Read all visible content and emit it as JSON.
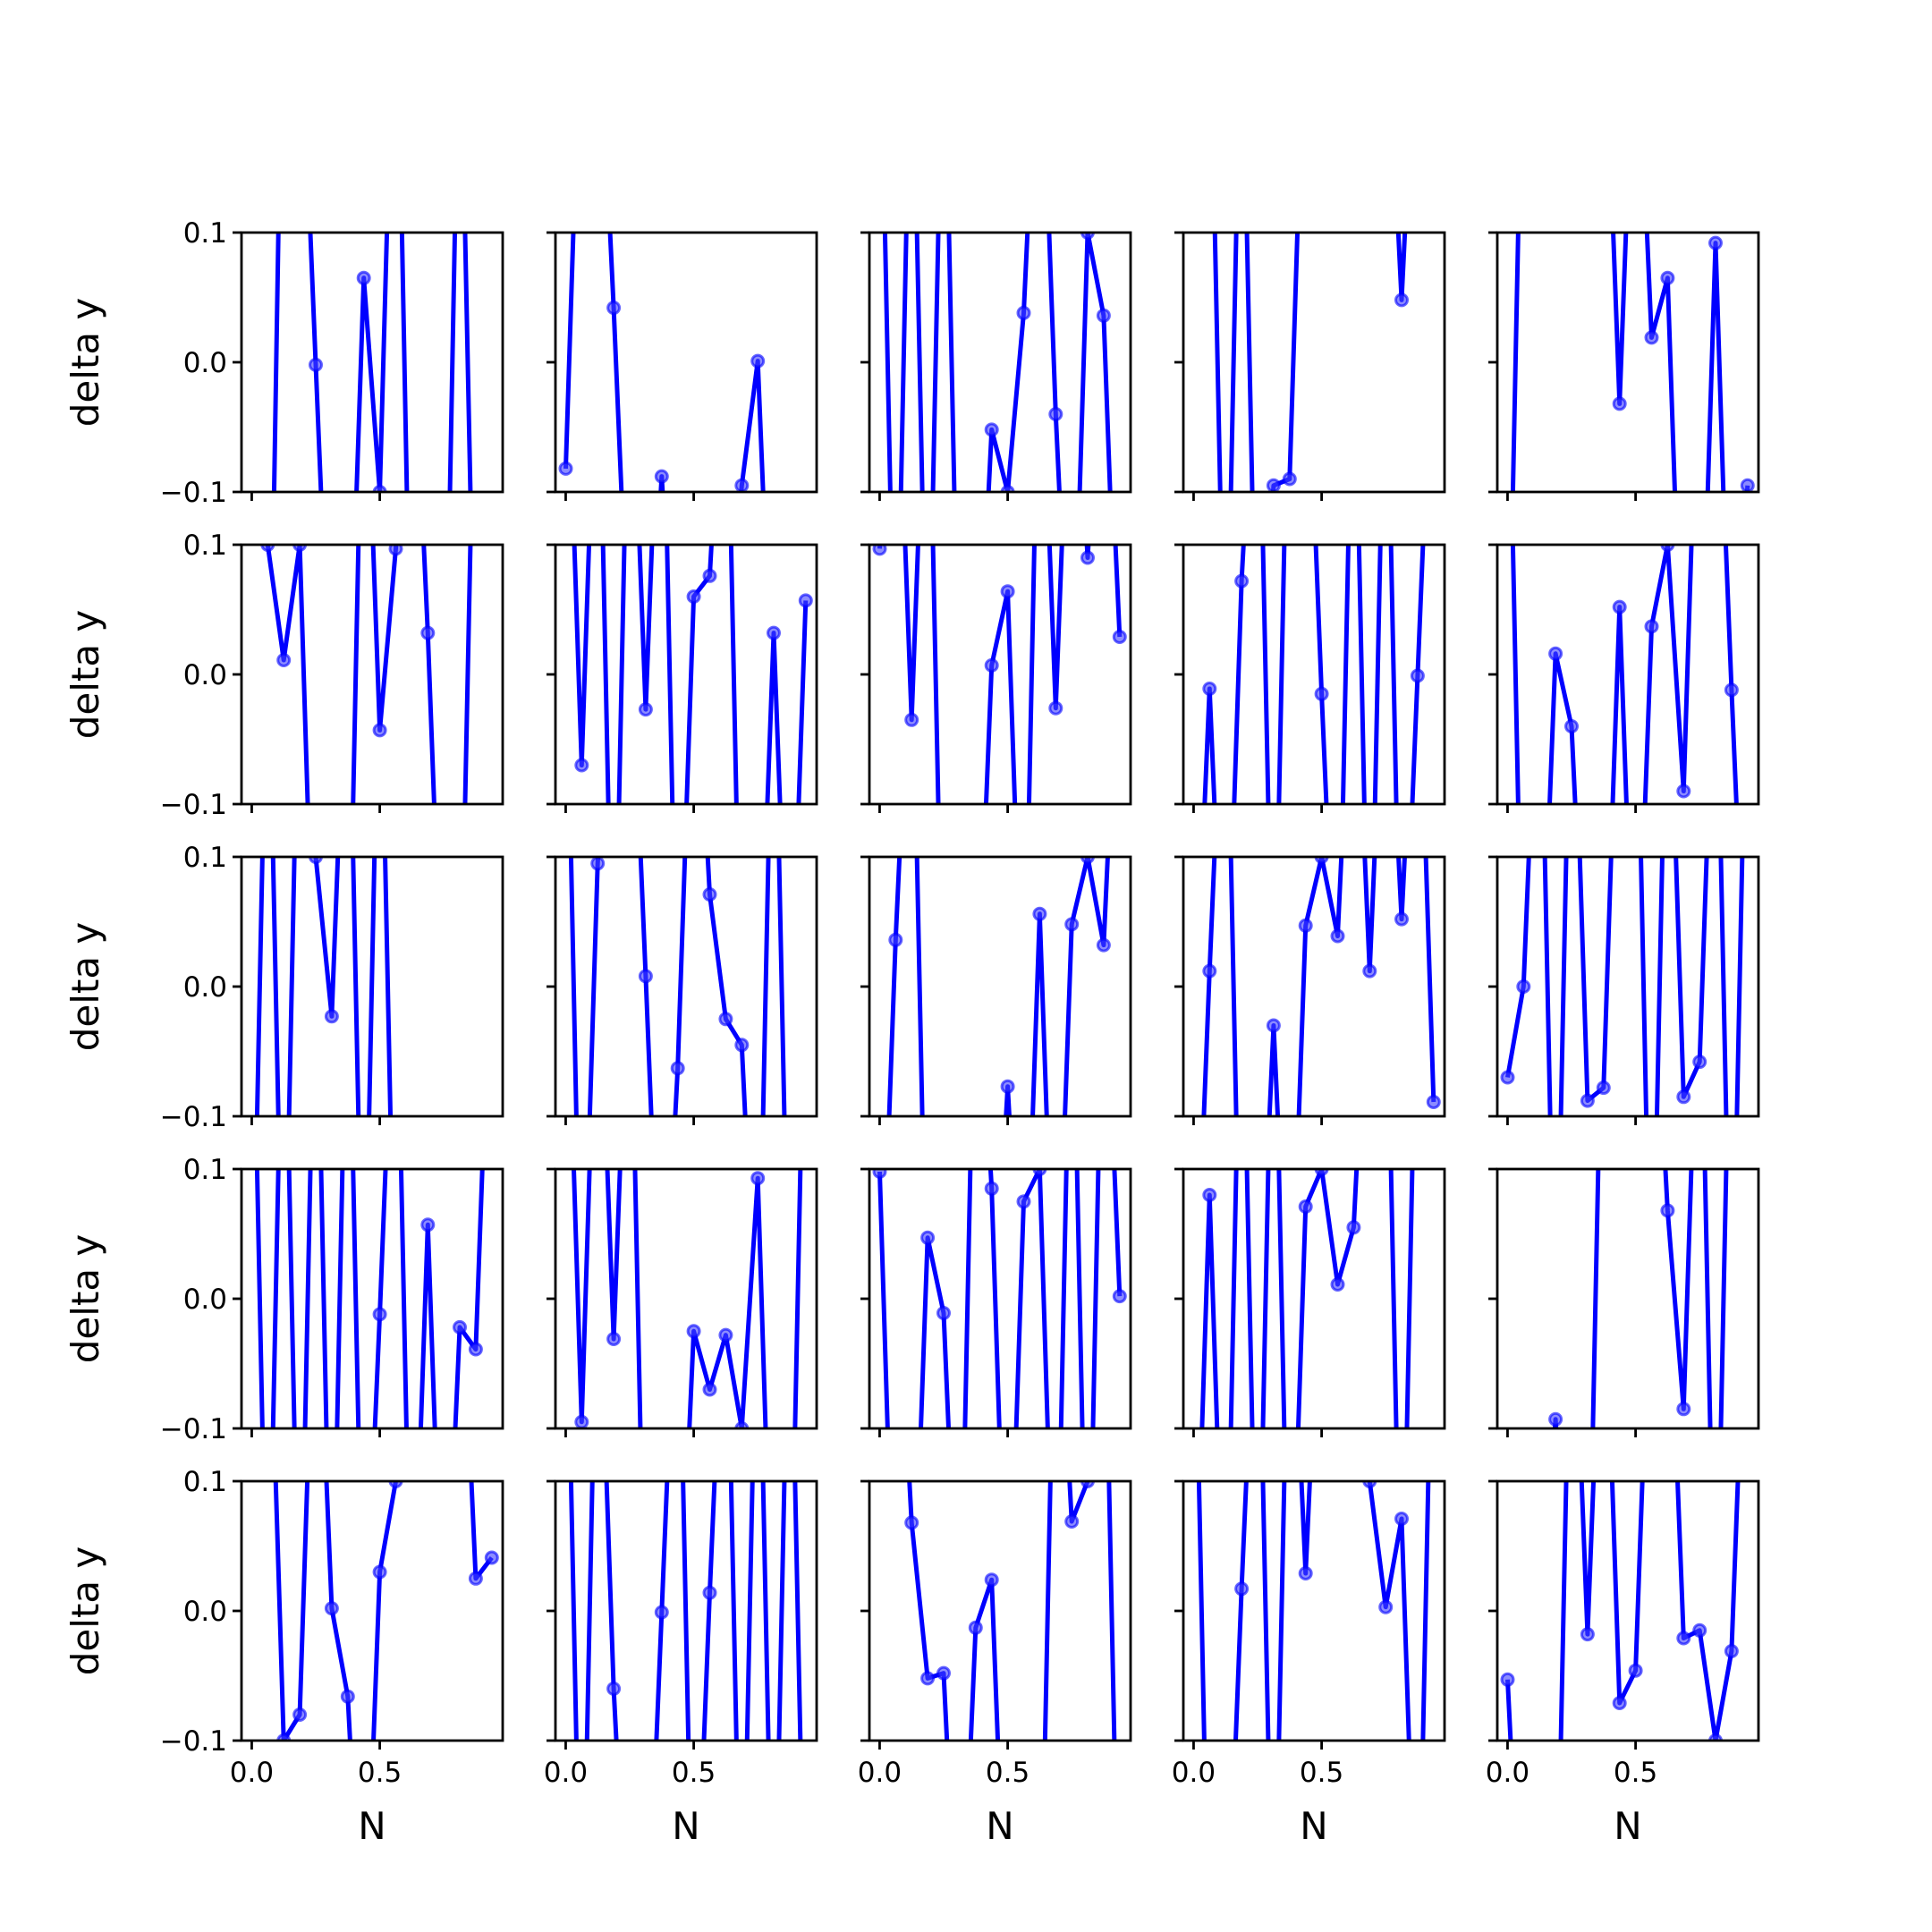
{
  "figure": {
    "colors": {
      "line": "#0000ff",
      "marker": "#4040ff",
      "axes": "#000000",
      "background": "#ffffff"
    }
  },
  "chart_data": {
    "type": "line",
    "layout": "5x5 grid of subplots, shared axes",
    "xlabel": "N",
    "ylabel": "delta y",
    "xlim": [
      -0.04,
      0.98
    ],
    "ylim": [
      -0.1,
      0.1
    ],
    "xticks": [
      0.0,
      0.5
    ],
    "xtick_labels": [
      "0.0",
      "0.5"
    ],
    "yticks": [
      -0.1,
      0.0,
      0.1
    ],
    "ytick_labels": [
      "−0.1",
      "0.0",
      "0.1"
    ],
    "grid": false,
    "x": [
      0.0,
      0.0625,
      0.125,
      0.1875,
      0.25,
      0.3125,
      0.375,
      0.4375,
      0.5,
      0.5625,
      0.625,
      0.6875,
      0.75,
      0.8125,
      0.875,
      0.9375
    ],
    "panels": [
      [
        [
          -0.3,
          -0.4,
          0.35,
          0.3,
          -0.002,
          -0.3,
          -0.3,
          0.065,
          -0.1,
          0.35,
          -0.3,
          -0.3,
          -0.35,
          0.3,
          -0.3,
          -0.3
        ],
        [
          -0.082,
          0.3,
          0.3,
          0.042,
          -0.25,
          -0.3,
          -0.088,
          -0.3,
          -0.3,
          -0.3,
          -0.25,
          -0.095,
          0.001,
          -0.3,
          -0.3,
          -0.3
        ],
        [
          0.3,
          -0.3,
          0.3,
          -0.3,
          0.3,
          -0.3,
          -0.3,
          -0.052,
          -0.1,
          0.038,
          0.3,
          -0.04,
          -0.3,
          0.1,
          0.036,
          -0.3
        ],
        [
          0.3,
          0.3,
          -0.3,
          0.3,
          -0.3,
          -0.095,
          -0.09,
          0.3,
          0.3,
          0.3,
          0.3,
          0.3,
          0.3,
          0.048,
          0.3,
          0.3
        ],
        [
          -0.3,
          0.3,
          0.3,
          0.3,
          0.3,
          0.3,
          0.3,
          -0.032,
          0.3,
          0.019,
          0.065,
          -0.3,
          -0.3,
          0.092,
          -0.3,
          -0.095
        ]
      ],
      [
        [
          0.3,
          0.1,
          0.011,
          0.1,
          -0.3,
          -0.3,
          -0.3,
          0.3,
          -0.043,
          0.097,
          0.3,
          0.032,
          -0.3,
          -0.3,
          0.3,
          0.3
        ],
        [
          0.3,
          -0.07,
          0.3,
          -0.3,
          0.3,
          -0.027,
          0.3,
          -0.3,
          0.06,
          0.076,
          0.3,
          -0.3,
          -0.3,
          0.032,
          -0.3,
          0.057
        ],
        [
          0.097,
          0.3,
          -0.035,
          0.3,
          -0.3,
          -0.3,
          -0.3,
          0.007,
          0.064,
          -0.3,
          0.3,
          -0.026,
          0.3,
          0.09,
          0.3,
          0.029
        ],
        [
          -0.3,
          -0.011,
          -0.3,
          0.072,
          0.3,
          -0.3,
          0.3,
          0.3,
          -0.015,
          -0.3,
          0.3,
          -0.3,
          0.3,
          -0.3,
          -0.001,
          0.3
        ],
        [
          0.3,
          -0.3,
          -0.3,
          0.016,
          -0.04,
          -0.3,
          -0.3,
          0.052,
          -0.3,
          0.037,
          0.1,
          -0.09,
          0.3,
          0.3,
          -0.012,
          -0.3
        ]
      ],
      [
        [
          -0.3,
          0.3,
          -0.3,
          0.3,
          0.1,
          -0.023,
          0.3,
          -0.3,
          0.3,
          -0.3,
          -0.3,
          -0.3,
          -0.3,
          -0.3,
          -0.3,
          -0.3
        ],
        [
          0.3,
          -0.3,
          0.095,
          0.3,
          0.3,
          0.008,
          -0.3,
          -0.063,
          0.3,
          0.071,
          -0.025,
          -0.045,
          -0.3,
          0.3,
          -0.3,
          -0.3
        ],
        [
          -0.3,
          0.036,
          0.3,
          -0.3,
          -0.3,
          -0.3,
          -0.3,
          -0.3,
          -0.077,
          -0.3,
          0.056,
          -0.3,
          0.048,
          0.1,
          0.032,
          0.3
        ],
        [
          -0.3,
          0.012,
          0.3,
          -0.3,
          -0.3,
          -0.03,
          -0.3,
          0.047,
          0.1,
          0.039,
          0.3,
          0.012,
          0.3,
          0.052,
          0.3,
          -0.089
        ],
        [
          -0.07,
          0.0,
          0.3,
          -0.3,
          0.3,
          -0.088,
          -0.078,
          0.3,
          0.3,
          -0.3,
          0.3,
          -0.085,
          -0.058,
          0.3,
          -0.3,
          0.3
        ]
      ],
      [
        [
          0.3,
          -0.3,
          0.3,
          -0.3,
          0.3,
          -0.3,
          0.3,
          -0.3,
          -0.012,
          0.3,
          -0.3,
          0.057,
          -0.3,
          -0.022,
          -0.039,
          0.3
        ],
        [
          0.3,
          -0.095,
          0.3,
          -0.031,
          0.3,
          -0.3,
          -0.3,
          -0.3,
          -0.025,
          -0.07,
          -0.028,
          -0.1,
          0.093,
          -0.3,
          -0.3,
          0.3
        ],
        [
          0.098,
          -0.3,
          -0.3,
          0.047,
          -0.011,
          -0.3,
          0.3,
          0.085,
          -0.3,
          0.075,
          0.1,
          -0.3,
          0.3,
          -0.3,
          0.3,
          0.002
        ],
        [
          -0.3,
          0.08,
          -0.3,
          0.3,
          -0.3,
          0.3,
          -0.3,
          0.071,
          0.1,
          0.011,
          0.055,
          0.3,
          0.3,
          -0.3,
          0.3,
          0.3
        ],
        [
          -0.3,
          -0.3,
          -0.3,
          -0.093,
          -0.3,
          -0.3,
          0.3,
          0.3,
          0.3,
          0.3,
          0.068,
          -0.085,
          0.3,
          -0.3,
          0.3,
          0.3
        ]
      ],
      [
        [
          0.3,
          0.3,
          -0.1,
          -0.08,
          0.3,
          0.002,
          -0.066,
          -0.3,
          0.03,
          0.1,
          0.3,
          0.3,
          0.3,
          0.3,
          0.025,
          0.041
        ],
        [
          0.3,
          -0.3,
          0.3,
          -0.06,
          -0.3,
          -0.3,
          -0.001,
          0.3,
          -0.3,
          0.014,
          0.3,
          -0.3,
          0.3,
          -0.3,
          0.3,
          -0.3
        ],
        [
          0.3,
          0.3,
          0.068,
          -0.052,
          -0.048,
          -0.3,
          -0.013,
          0.024,
          -0.3,
          -0.3,
          -0.3,
          0.3,
          0.069,
          0.1,
          0.3,
          -0.3
        ],
        [
          0.3,
          -0.3,
          -0.3,
          0.017,
          0.3,
          -0.3,
          0.3,
          0.029,
          0.3,
          0.3,
          0.3,
          0.1,
          0.003,
          0.071,
          -0.3,
          0.3
        ],
        [
          -0.053,
          -0.3,
          -0.3,
          -0.3,
          0.3,
          -0.018,
          0.3,
          -0.071,
          -0.046,
          0.3,
          0.3,
          -0.021,
          -0.015,
          -0.1,
          -0.031,
          0.3
        ]
      ]
    ]
  }
}
